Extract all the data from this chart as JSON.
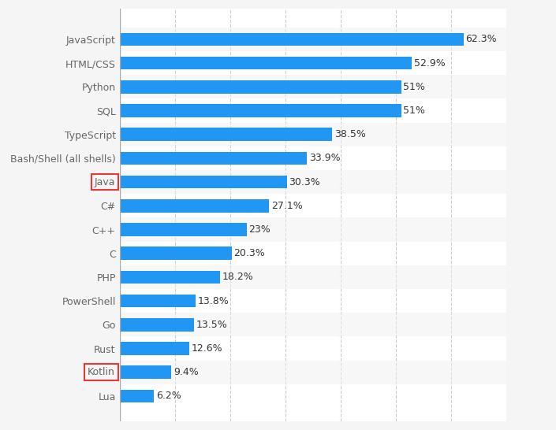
{
  "categories": [
    "JavaScript",
    "HTML/CSS",
    "Python",
    "SQL",
    "TypeScript",
    "Bash/Shell (all shells)",
    "Java",
    "C#",
    "C++",
    "C",
    "PHP",
    "PowerShell",
    "Go",
    "Rust",
    "Kotlin",
    "Lua"
  ],
  "values": [
    62.3,
    52.9,
    51.0,
    51.0,
    38.5,
    33.9,
    30.3,
    27.1,
    23.0,
    20.3,
    18.2,
    13.8,
    13.5,
    12.6,
    9.4,
    6.2
  ],
  "labels": [
    "62.3%",
    "52.9%",
    "51%",
    "51%",
    "38.5%",
    "33.9%",
    "30.3%",
    "27.1%",
    "23%",
    "20.3%",
    "18.2%",
    "13.8%",
    "13.5%",
    "12.6%",
    "9.4%",
    "6.2%"
  ],
  "bar_color": "#2196F3",
  "highlight_boxes": [
    "Java",
    "Kotlin"
  ],
  "highlight_box_color": "#e53935",
  "background_color": "#f5f5f5",
  "bar_area_color": "#ffffff",
  "grid_color": "#cccccc",
  "text_color": "#666666",
  "label_color": "#333333",
  "bar_height": 0.55,
  "xlim": [
    0,
    70
  ],
  "fontsize_labels": 9,
  "fontsize_values": 9
}
